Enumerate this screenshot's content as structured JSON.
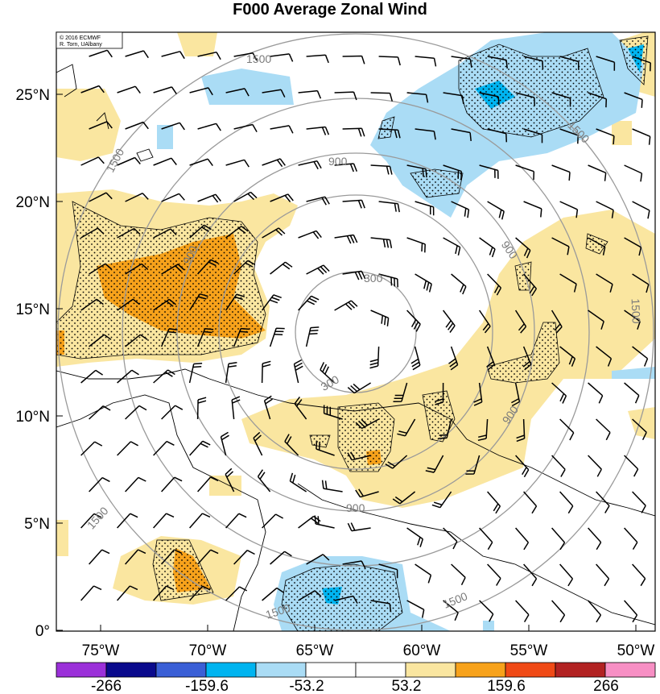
{
  "title": "F000 Average Zonal Wind",
  "credit": {
    "line1": "© 2016 ECMWF",
    "line2": "R. Torn, UAlbany"
  },
  "map": {
    "lat_labels": [
      "25°N",
      "20°N",
      "15°N",
      "10°N",
      "5°N",
      "0°"
    ],
    "lon_labels": [
      "75°W",
      "70°W",
      "65°W",
      "60°W",
      "55°W",
      "50°W"
    ],
    "lon_range": [
      -77.5,
      -49.5
    ],
    "lat_range": [
      0,
      27.5
    ],
    "range_rings": [
      {
        "label": "300",
        "radius_km": 300
      },
      {
        "label": "900",
        "radius_km": 900
      },
      {
        "label": "1500",
        "radius_km": 1500
      }
    ],
    "ring_label_instances": [
      "1500",
      "1500",
      "1500",
      "1500",
      "1500",
      "1500",
      "900",
      "900",
      "900",
      "900",
      "900",
      "300",
      "300"
    ],
    "center": {
      "lon": -65.0,
      "lat": 13.5
    }
  },
  "colorbar": {
    "tick_labels": [
      "-266",
      "-159.6",
      "-53.2",
      "53.2",
      "159.6",
      "266"
    ],
    "colors": [
      "#9b30d9",
      "#0a0a8c",
      "#3a5fd6",
      "#00b4f0",
      "#aadcf5",
      "#ffffff",
      "#ffffff",
      "#fae6a0",
      "#f7a21b",
      "#f04a16",
      "#b22222",
      "#f78fc4"
    ]
  },
  "colors": {
    "pos_light": "#fae6a0",
    "pos_mid": "#f7a21b",
    "neg_light": "#aadcf5",
    "neg_mid": "#00b4f0",
    "ring": "#9a9a9a"
  }
}
